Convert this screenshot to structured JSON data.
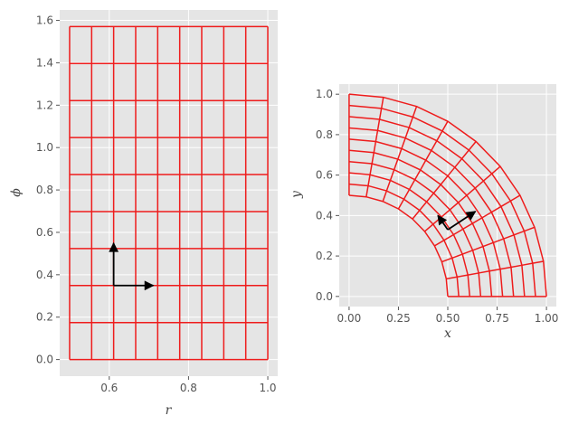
{
  "theme": {
    "panel_bg": "#e5e5e5",
    "grid_color": "#ffffff",
    "mesh_color": "#ee1c1c",
    "tick_color": "#555555",
    "arrow_color": "#000000"
  },
  "chart_data": [
    {
      "type": "line",
      "xlabel": "r",
      "ylabel": "ϕ",
      "xlim": [
        0.475,
        1.025
      ],
      "ylim": [
        -0.0785,
        1.6493
      ],
      "xticks": [
        0.6,
        0.8,
        1.0
      ],
      "xtick_labels": [
        "0.6",
        "0.8",
        "1.0"
      ],
      "yticks": [
        0.0,
        0.2,
        0.4,
        0.6,
        0.8,
        1.0,
        1.2,
        1.4,
        1.6
      ],
      "ytick_labels": [
        "0.0",
        "0.2",
        "0.4",
        "0.6",
        "0.8",
        "1.0",
        "1.2",
        "1.4",
        "1.6"
      ],
      "grid": true,
      "r_values": [
        0.5,
        0.5556,
        0.6111,
        0.6667,
        0.7222,
        0.7778,
        0.8333,
        0.8889,
        0.9444,
        1.0
      ],
      "phi_values": [
        0.0,
        0.1745,
        0.3491,
        0.5236,
        0.6981,
        0.8727,
        1.0472,
        1.2217,
        1.3963,
        1.5708
      ],
      "vectors": [
        {
          "origin": [
            0.6111,
            0.3491
          ],
          "components": [
            0.0,
            0.2
          ]
        },
        {
          "origin": [
            0.6111,
            0.3491
          ],
          "components": [
            0.1,
            0.0
          ]
        }
      ]
    },
    {
      "type": "line",
      "xlabel": "x",
      "ylabel": "y",
      "xlim": [
        -0.05,
        1.05
      ],
      "ylim": [
        -0.05,
        1.05
      ],
      "xticks": [
        0.0,
        0.25,
        0.5,
        0.75,
        1.0
      ],
      "xtick_labels": [
        "0.00",
        "0.25",
        "0.50",
        "0.75",
        "1.00"
      ],
      "yticks": [
        0.0,
        0.2,
        0.4,
        0.6,
        0.8,
        1.0
      ],
      "ytick_labels": [
        "0.0",
        "0.2",
        "0.4",
        "0.6",
        "0.8",
        "1.0"
      ],
      "grid": true,
      "mapping": "x = r·cos(ϕ), y = r·sin(ϕ)",
      "vectors": [
        {
          "origin": [
            0.5,
            0.33
          ],
          "components": [
            -0.05,
            0.07
          ]
        },
        {
          "origin": [
            0.5,
            0.33
          ],
          "components": [
            0.14,
            0.09
          ]
        }
      ]
    }
  ]
}
